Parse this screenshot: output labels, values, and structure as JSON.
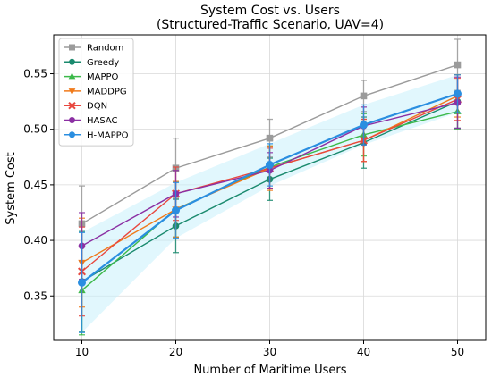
{
  "chart_data": {
    "type": "line",
    "title": "System Cost vs. Users",
    "subtitle": "(Structured-Traffic Scenario, UAV=4)",
    "xlabel": "Number of Maritime Users",
    "ylabel": "System Cost",
    "x": [
      10,
      20,
      30,
      40,
      50
    ],
    "xlim": [
      7,
      53
    ],
    "ylim": [
      0.31,
      0.585
    ],
    "xticks": [
      10,
      20,
      30,
      40,
      50
    ],
    "yticks": [
      0.35,
      0.4,
      0.45,
      0.5,
      0.55
    ],
    "ytick_labels": [
      "0.35",
      "0.40",
      "0.45",
      "0.50",
      "0.55"
    ],
    "grid": true,
    "legend_position": "top-left",
    "series": [
      {
        "name": "Random",
        "color": "#9b9b9b",
        "marker": "square",
        "values": [
          0.415,
          0.465,
          0.492,
          0.53,
          0.558
        ],
        "errors": [
          0.034,
          0.027,
          0.017,
          0.014,
          0.023
        ]
      },
      {
        "name": "Greedy",
        "color": "#1a8a6e",
        "marker": "circle",
        "values": [
          0.363,
          0.413,
          0.455,
          0.488,
          0.525
        ],
        "errors": [
          0.045,
          0.024,
          0.019,
          0.023,
          0.024
        ]
      },
      {
        "name": "MAPPO",
        "color": "#3cb94a",
        "marker": "triangle-up",
        "values": [
          0.355,
          0.428,
          0.466,
          0.495,
          0.516
        ],
        "errors": [
          0.04,
          0.025,
          0.019,
          0.019,
          0.016
        ]
      },
      {
        "name": "MADDPG",
        "color": "#f07a1a",
        "marker": "triangle-down",
        "values": [
          0.38,
          0.428,
          0.465,
          0.49,
          0.53
        ],
        "errors": [
          0.04,
          0.025,
          0.02,
          0.019,
          0.019
        ]
      },
      {
        "name": "DQN",
        "color": "#e8473e",
        "marker": "x",
        "values": [
          0.372,
          0.442,
          0.465,
          0.49,
          0.527
        ],
        "errors": [
          0.04,
          0.024,
          0.018,
          0.019,
          0.019
        ]
      },
      {
        "name": "HASAC",
        "color": "#8b2fa3",
        "marker": "circle",
        "values": [
          0.395,
          0.442,
          0.463,
          0.503,
          0.524
        ],
        "errors": [
          0.03,
          0.021,
          0.016,
          0.017,
          0.023
        ]
      },
      {
        "name": "H-MAPPO",
        "color": "#2a8ee0",
        "marker": "circle",
        "values": [
          0.362,
          0.427,
          0.468,
          0.504,
          0.532
        ],
        "errors": [
          0.045,
          0.025,
          0.019,
          0.018,
          0.017
        ]
      }
    ]
  }
}
